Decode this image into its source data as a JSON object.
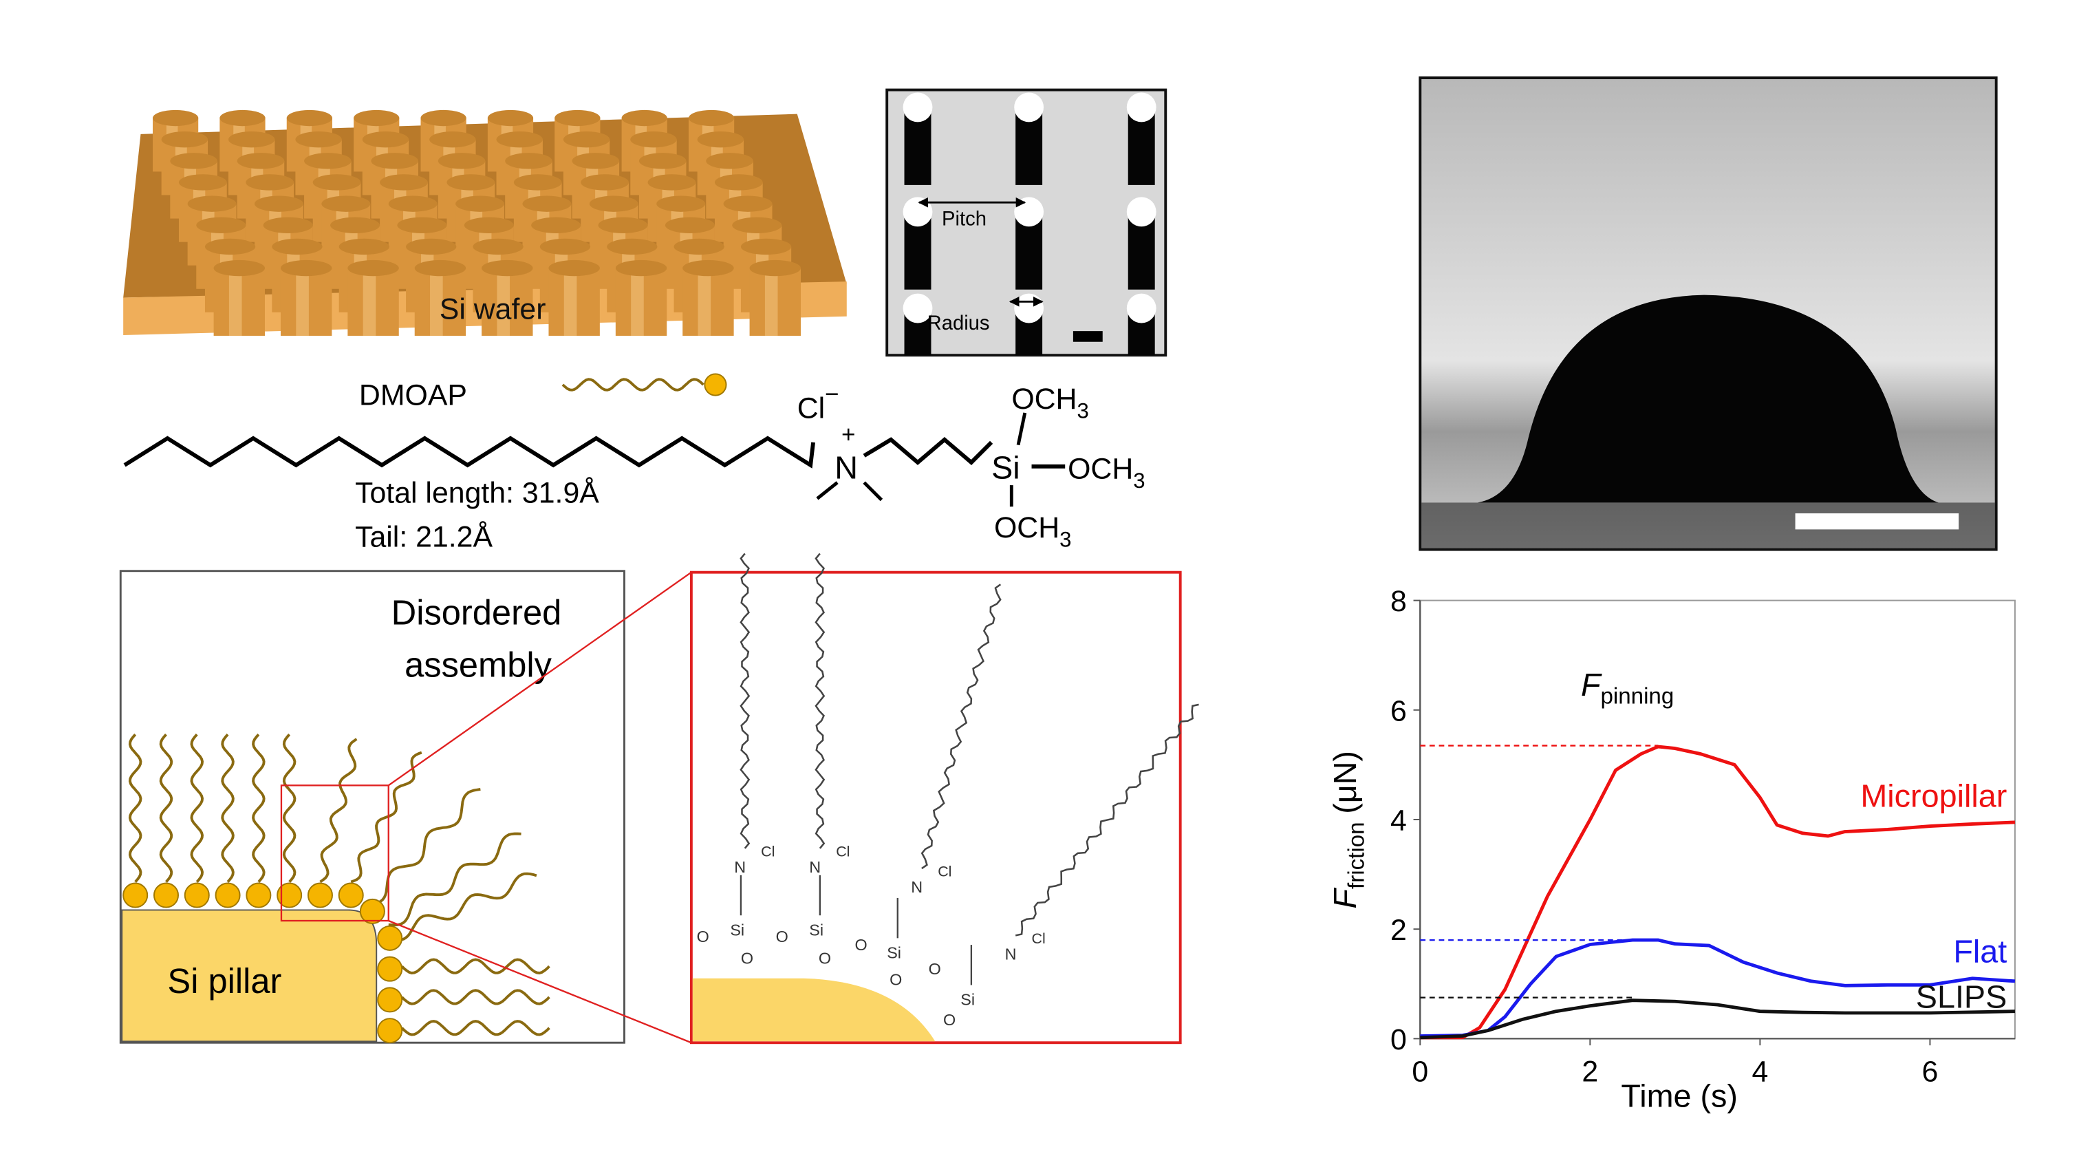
{
  "panel_a": {
    "wafer_label": "Si wafer",
    "sem_pitch_label": "Pitch",
    "sem_radius_label": "Radius",
    "pillar_color": "#e8a94a"
  },
  "molecule": {
    "name": "DMOAP",
    "chloride": "Cl",
    "chloride_charge": "−",
    "nitrogen": "N",
    "nitrogen_charge": "+",
    "silicon": "Si",
    "methoxy": "OCH",
    "methoxy_sub": "3",
    "total_length": "Total length: 31.9Å",
    "tail_length": "Tail: 21.2Å",
    "bead_color": "#f5b400",
    "chain_color": "#8a6a10"
  },
  "assembly": {
    "title_line1": "Disordered",
    "title_line2": "assembly",
    "pillar_label": "Si pillar",
    "pillar_fill": "#fbd668",
    "zoom_color": "#e02020",
    "zoom_labels": {
      "si": "Si",
      "o": "O",
      "n": "N",
      "cl": "Cl"
    }
  },
  "chart_data": {
    "type": "line",
    "xlabel": "Time (s)",
    "ylabel_main": "F",
    "ylabel_sub": "friction",
    "ylabel_unit": "(μN)",
    "annotation_main": "F",
    "annotation_sub": "pinning",
    "xlim": [
      0,
      7
    ],
    "ylim": [
      0,
      8
    ],
    "xticks": [
      "0",
      "2",
      "4",
      "6"
    ],
    "yticks": [
      "0",
      "2",
      "4",
      "6",
      "8"
    ],
    "grid": false,
    "series": [
      {
        "name": "Micropillar",
        "color": "#ee1111",
        "pinning": 5.35,
        "x": [
          0,
          0.5,
          0.7,
          1.0,
          1.5,
          2.0,
          2.3,
          2.6,
          2.8,
          3.0,
          3.3,
          3.7,
          4.0,
          4.2,
          4.5,
          4.8,
          5.0,
          5.5,
          6.0,
          6.5,
          7.0
        ],
        "y": [
          0.02,
          0.02,
          0.2,
          0.9,
          2.6,
          4.0,
          4.9,
          5.2,
          5.33,
          5.3,
          5.2,
          5.0,
          4.4,
          3.9,
          3.75,
          3.7,
          3.78,
          3.82,
          3.88,
          3.92,
          3.95
        ]
      },
      {
        "name": "Flat",
        "color": "#1a1aee",
        "pinning": 1.8,
        "x": [
          0,
          0.5,
          0.8,
          1.0,
          1.3,
          1.6,
          2.0,
          2.5,
          2.8,
          3.0,
          3.4,
          3.8,
          4.2,
          4.6,
          5.0,
          5.5,
          6.0,
          6.5,
          7.0
        ],
        "y": [
          0.05,
          0.06,
          0.15,
          0.4,
          1.0,
          1.5,
          1.72,
          1.8,
          1.8,
          1.73,
          1.7,
          1.4,
          1.2,
          1.05,
          0.97,
          0.98,
          0.98,
          1.1,
          1.05
        ]
      },
      {
        "name": "SLIPS",
        "color": "#111111",
        "pinning": 0.75,
        "x": [
          0,
          0.5,
          0.8,
          1.2,
          1.6,
          2.0,
          2.5,
          3.0,
          3.5,
          4.0,
          4.5,
          5.0,
          6.0,
          7.0
        ],
        "y": [
          0.02,
          0.05,
          0.15,
          0.35,
          0.5,
          0.6,
          0.7,
          0.68,
          0.62,
          0.5,
          0.48,
          0.47,
          0.47,
          0.5
        ]
      }
    ]
  }
}
